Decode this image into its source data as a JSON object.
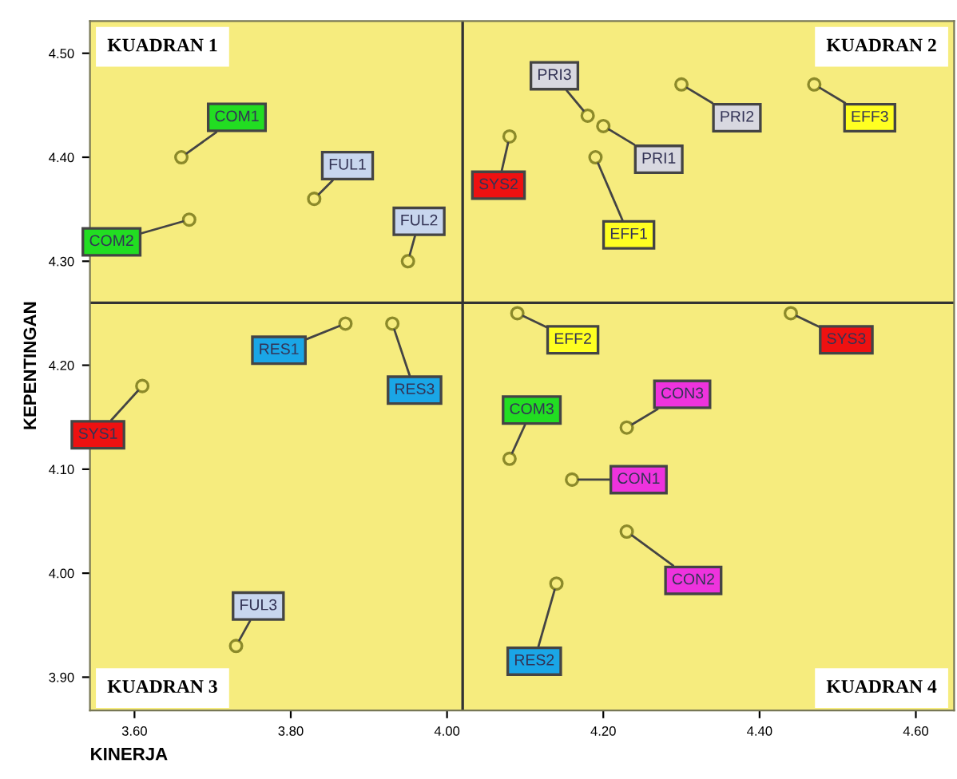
{
  "chart_data": {
    "type": "scatter",
    "xlabel": "KINERJA",
    "ylabel": "KEPENTINGAN",
    "x": [
      3.66,
      3.67,
      3.83,
      3.95,
      4.18,
      4.2,
      4.3,
      4.47,
      4.08,
      4.19,
      3.87,
      3.93,
      3.61,
      3.73,
      4.09,
      4.44,
      4.23,
      4.08,
      4.16,
      4.23,
      4.14
    ],
    "values": [
      4.4,
      4.34,
      4.36,
      4.3,
      4.44,
      4.43,
      4.47,
      4.47,
      4.42,
      4.4,
      4.24,
      4.24,
      4.18,
      3.93,
      4.25,
      4.25,
      4.14,
      4.11,
      4.09,
      4.04,
      3.99
    ],
    "color": "#8c8a2a",
    "marker": "circle",
    "xlim": [
      3.543,
      4.649
    ],
    "ylim": [
      3.868,
      4.531
    ],
    "xticks": [
      {
        "value": 3.6,
        "label": "3.60"
      },
      {
        "value": 3.8,
        "label": "3.80"
      },
      {
        "value": 4.0,
        "label": "4.00"
      },
      {
        "value": 4.2,
        "label": "4.20"
      },
      {
        "value": 4.4,
        "label": "4.40"
      },
      {
        "value": 4.6,
        "label": "4.60"
      }
    ],
    "yticks": [
      {
        "value": 3.9,
        "label": "3.90"
      },
      {
        "value": 4.0,
        "label": "4.00"
      },
      {
        "value": 4.1,
        "label": "4.10"
      },
      {
        "value": 4.2,
        "label": "4.20"
      },
      {
        "value": 4.3,
        "label": "4.30"
      },
      {
        "value": 4.4,
        "label": "4.40"
      },
      {
        "value": 4.5,
        "label": "4.50"
      }
    ],
    "ref_lines": [
      {
        "axis": "x",
        "value": 4.02,
        "color": "#333333"
      },
      {
        "axis": "y",
        "value": 4.26,
        "color": "#333333"
      }
    ],
    "grid": false,
    "annotations": [
      "KUADRAN 1",
      "KUADRAN 2",
      "KUADRAN 3",
      "KUADRAN 4",
      {
        "text": "COM1",
        "x": 3.66,
        "y": 4.4
      },
      {
        "text": "COM2",
        "x": 3.67,
        "y": 4.34
      },
      {
        "text": "FUL1",
        "x": 3.83,
        "y": 4.36
      },
      {
        "text": "FUL2",
        "x": 3.95,
        "y": 4.3
      },
      {
        "text": "PRI3",
        "x": 4.18,
        "y": 4.44
      },
      {
        "text": "PRI1",
        "x": 4.2,
        "y": 4.43
      },
      {
        "text": "PRI2",
        "x": 4.3,
        "y": 4.47
      },
      {
        "text": "EFF3",
        "x": 4.47,
        "y": 4.47
      },
      {
        "text": "SYS2",
        "x": 4.08,
        "y": 4.42
      },
      {
        "text": "EFF1",
        "x": 4.19,
        "y": 4.4
      },
      {
        "text": "RES1",
        "x": 3.87,
        "y": 4.24
      },
      {
        "text": "RES3",
        "x": 3.93,
        "y": 4.24
      },
      {
        "text": "SYS1",
        "x": 3.61,
        "y": 4.18
      },
      {
        "text": "FUL3",
        "x": 3.73,
        "y": 3.93
      },
      {
        "text": "EFF2",
        "x": 4.09,
        "y": 4.25
      },
      {
        "text": "SYS3",
        "x": 4.44,
        "y": 4.25
      },
      {
        "text": "CON3",
        "x": 4.23,
        "y": 4.14
      },
      {
        "text": "COM3",
        "x": 4.08,
        "y": 4.11
      },
      {
        "text": "CON1",
        "x": 4.16,
        "y": 4.09
      },
      {
        "text": "CON2",
        "x": 4.23,
        "y": 4.04
      },
      {
        "text": "RES2",
        "x": 4.14,
        "y": 3.99
      }
    ]
  }
}
